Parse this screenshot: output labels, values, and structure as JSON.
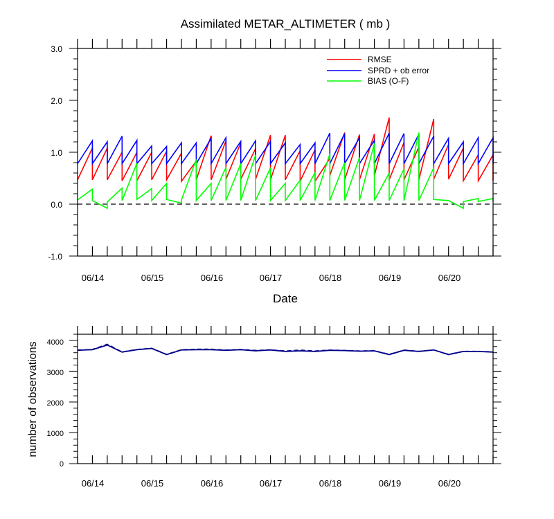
{
  "chart_data": [
    {
      "type": "line",
      "title": "Assimilated METAR_ALTIMETER ( mb )",
      "xlabel": "Date",
      "ylabel": "",
      "ylim": [
        -1.0,
        3.0
      ],
      "yticks": [
        "3.0",
        "2.0",
        "1.0",
        "0.0",
        "-1.0"
      ],
      "xlim": [
        0.0,
        7.0
      ],
      "xticklabels": [
        "06/14",
        "06/15",
        "06/16",
        "06/17",
        "06/18",
        "06/19",
        "06/20"
      ],
      "grid": false,
      "legend_position": "top-right",
      "zero_line": "dashed",
      "sawtooth": "each 6-hour cycle draws a vertical jump from the prior (background) value to the posterior (analysis) value, then a line to the next cycle's prior",
      "cycle_times": [
        0.0,
        0.25,
        0.5,
        0.75,
        1.0,
        1.25,
        1.5,
        1.75,
        2.0,
        2.25,
        2.5,
        2.75,
        3.0,
        3.25,
        3.5,
        3.75,
        4.0,
        4.25,
        4.5,
        4.75,
        5.0,
        5.25,
        5.5,
        5.75,
        6.0,
        6.25,
        6.5,
        6.75,
        7.0
      ],
      "series": [
        {
          "name": "RMSE",
          "color": "#ff0000",
          "prior": [
            0.47,
            1.08,
            1.08,
            1.0,
            1.0,
            1.0,
            1.02,
            0.98,
            0.83,
            1.32,
            1.22,
            1.18,
            1.07,
            1.33,
            1.33,
            1.03,
            1.05,
            0.88,
            1.38,
            1.34,
            1.35,
            1.67,
            1.19,
            1.1,
            1.64,
            1.15,
            1.08,
            0.95,
            0.95
          ],
          "posterior": [
            0.47,
            0.47,
            0.47,
            0.45,
            0.45,
            0.47,
            0.47,
            0.44,
            0.47,
            0.47,
            0.48,
            0.48,
            0.48,
            0.47,
            0.47,
            0.44,
            0.44,
            0.55,
            0.47,
            0.47,
            0.55,
            0.47,
            0.47,
            0.47,
            0.48,
            0.48,
            0.45,
            0.45,
            0.45
          ]
        },
        {
          "name": "SPRD + ob error",
          "color": "#0000ff",
          "prior": [
            0.78,
            1.22,
            1.2,
            1.31,
            1.23,
            1.12,
            1.11,
            1.18,
            1.18,
            1.27,
            1.28,
            1.21,
            1.22,
            1.21,
            1.18,
            1.15,
            1.18,
            1.37,
            1.36,
            1.28,
            1.23,
            1.37,
            1.36,
            1.35,
            1.31,
            1.27,
            1.2,
            1.28,
            1.28
          ],
          "posterior": [
            0.78,
            0.78,
            0.78,
            0.78,
            0.78,
            0.78,
            0.78,
            0.78,
            0.78,
            0.78,
            0.78,
            0.78,
            0.78,
            0.78,
            0.78,
            0.78,
            0.78,
            0.78,
            0.78,
            0.78,
            0.78,
            0.78,
            0.78,
            0.78,
            0.78,
            0.78,
            0.78,
            0.78,
            0.78
          ]
        },
        {
          "name": "BIAS (O-F)",
          "color": "#00ff00",
          "prior": [
            0.08,
            0.29,
            -0.08,
            0.31,
            0.79,
            0.3,
            0.4,
            0.02,
            0.86,
            0.4,
            0.71,
            0.78,
            0.95,
            0.7,
            0.4,
            0.46,
            0.61,
            0.97,
            0.8,
            0.9,
            1.17,
            0.6,
            0.68,
            1.38,
            0.7,
            0.07,
            -0.08,
            0.11,
            0.11
          ],
          "posterior": [
            0.08,
            0.07,
            0.04,
            0.07,
            0.09,
            0.07,
            0.09,
            0.08,
            0.07,
            0.07,
            0.07,
            0.07,
            0.07,
            0.07,
            0.07,
            0.07,
            0.07,
            0.07,
            0.07,
            0.07,
            0.07,
            0.07,
            0.07,
            0.07,
            0.09,
            0.07,
            0.05,
            0.05,
            0.05
          ]
        }
      ]
    },
    {
      "type": "line",
      "title": "",
      "xlabel": "",
      "ylabel": "number of observations",
      "ylim": [
        0,
        4200
      ],
      "yticks": [
        "4000",
        "3000",
        "2000",
        "1000",
        "0"
      ],
      "xlim": [
        0.0,
        7.0
      ],
      "xticklabels": [
        "06/14",
        "06/15",
        "06/16",
        "06/17",
        "06/18",
        "06/19",
        "06/20"
      ],
      "grid": false,
      "x": [
        0.0,
        0.25,
        0.5,
        0.75,
        1.0,
        1.25,
        1.5,
        1.75,
        2.0,
        2.25,
        2.5,
        2.75,
        3.0,
        3.25,
        3.5,
        3.75,
        4.0,
        4.25,
        4.5,
        4.75,
        5.0,
        5.25,
        5.5,
        5.75,
        6.0,
        6.25,
        6.5,
        6.75,
        7.0
      ],
      "series": [
        {
          "color": "#00008b",
          "style": "solid",
          "values": [
            3680,
            3700,
            3850,
            3620,
            3700,
            3740,
            3540,
            3690,
            3700,
            3700,
            3680,
            3700,
            3660,
            3690,
            3640,
            3660,
            3640,
            3680,
            3670,
            3650,
            3660,
            3540,
            3680,
            3640,
            3690,
            3540,
            3640,
            3640,
            3620
          ]
        },
        {
          "color": "#00008b",
          "style": "dashed",
          "values": [
            3690,
            3710,
            3880,
            3630,
            3710,
            3750,
            3550,
            3700,
            3720,
            3720,
            3690,
            3710,
            3680,
            3700,
            3660,
            3690,
            3660,
            3690,
            3680,
            3660,
            3670,
            3550,
            3690,
            3650,
            3690,
            3550,
            3650,
            3650,
            3630
          ]
        }
      ]
    }
  ]
}
